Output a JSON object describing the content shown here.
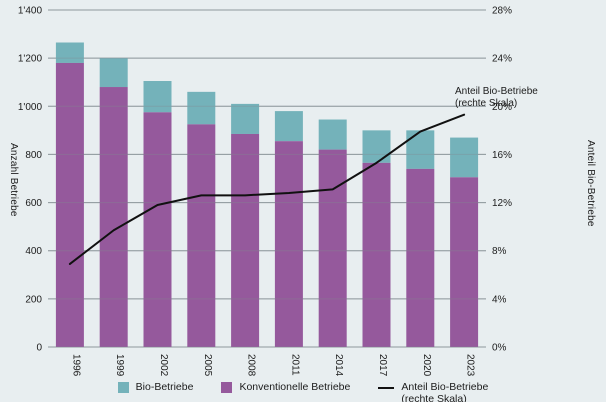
{
  "colors": {
    "background": "#e8eef0",
    "bio": "#74b2ba",
    "konventionell": "#95599c",
    "line": "#111111",
    "gridline": "#97a0a5",
    "text": "#1c1c1c"
  },
  "chart_data": {
    "type": "bar",
    "subtype": "stacked-bars-with-line-overlay",
    "categories": [
      "1996",
      "1999",
      "2002",
      "2005",
      "2008",
      "2011",
      "2014",
      "2017",
      "2020",
      "2023"
    ],
    "series": [
      {
        "name": "Konventionelle Betriebe",
        "type": "bar",
        "stack_position": "bottom",
        "color_key": "konventionell",
        "values": [
          1180,
          1080,
          975,
          925,
          885,
          855,
          820,
          765,
          740,
          705
        ]
      },
      {
        "name": "Bio-Betriebe",
        "type": "bar",
        "stack_position": "top",
        "color_key": "bio",
        "values": [
          85,
          120,
          130,
          135,
          125,
          125,
          125,
          135,
          160,
          165
        ]
      },
      {
        "name": "Anteil Bio-Betriebe (rechte Skala)",
        "type": "line",
        "axis": "right",
        "color_key": "line",
        "values": [
          6.9,
          9.7,
          11.8,
          12.6,
          12.6,
          12.8,
          13.1,
          15.3,
          17.9,
          19.3
        ]
      }
    ],
    "left_axis": {
      "label": "Anzahl Betriebe",
      "min": 0,
      "max": 1400,
      "step": 200,
      "ticks": [
        "1'400",
        "1'200",
        "1'000",
        "800",
        "600",
        "400",
        "200",
        "0"
      ]
    },
    "right_axis": {
      "label": "Anteil Bio-Betriebe",
      "min": 0,
      "max": 28,
      "step": 4,
      "ticks": [
        "28%",
        "24%",
        "20%",
        "16%",
        "12%",
        "8%",
        "4%",
        "0%"
      ]
    },
    "grid": "horizontal",
    "annotation": {
      "line1": "Anteil Bio-Betriebe",
      "line2": "(rechte Skala)"
    }
  },
  "legend": {
    "items": [
      {
        "label": "Bio-Betriebe",
        "swatch": "bio"
      },
      {
        "label": "Konventionelle Betriebe",
        "swatch": "konventionell"
      },
      {
        "label": "Anteil Bio-Betriebe",
        "label2": "(rechte Skala)",
        "swatch": "line"
      }
    ]
  }
}
